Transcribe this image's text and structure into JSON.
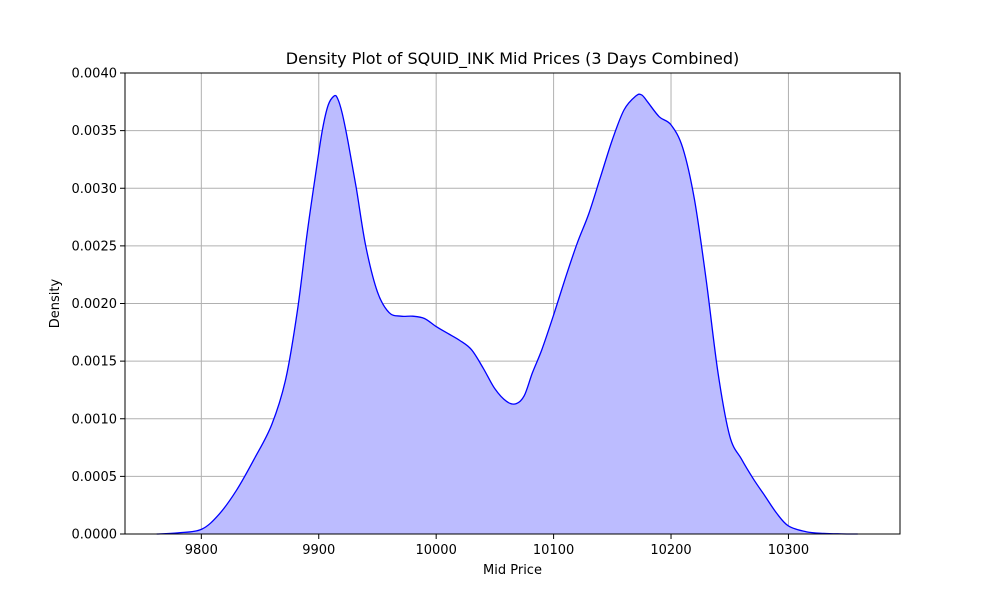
{
  "chart_data": {
    "type": "area",
    "title": "Density Plot of SQUID_INK Mid Prices (3 Days Combined)",
    "xlabel": "Mid Price",
    "ylabel": "Density",
    "xlim": [
      9735,
      10395
    ],
    "ylim": [
      0,
      0.004
    ],
    "xticks": [
      9800,
      9900,
      10000,
      10100,
      10200,
      10300
    ],
    "xtick_labels": [
      "9800",
      "9900",
      "10000",
      "10100",
      "10200",
      "10300"
    ],
    "yticks": [
      0,
      0.0005,
      0.001,
      0.0015,
      0.002,
      0.0025,
      0.003,
      0.0035,
      0.004
    ],
    "ytick_labels": [
      "0.0000",
      "0.0005",
      "0.0010",
      "0.0015",
      "0.0020",
      "0.0025",
      "0.0030",
      "0.0035",
      "0.0040"
    ],
    "grid": true,
    "line_color": "#0000ff",
    "fill_color": "#bcbcff",
    "series": [
      {
        "x": [
          9762,
          9780,
          9800,
          9815,
          9830,
          9845,
          9860,
          9872,
          9882,
          9890,
          9897,
          9903,
          9908,
          9913,
          9916,
          9920,
          9925,
          9932,
          9940,
          9950,
          9960,
          9970,
          9980,
          9990,
          10000,
          10010,
          10020,
          10030,
          10040,
          10050,
          10060,
          10068,
          10075,
          10082,
          10090,
          10100,
          10110,
          10120,
          10130,
          10140,
          10150,
          10160,
          10170,
          10175,
          10180,
          10190,
          10200,
          10210,
          10220,
          10230,
          10240,
          10250,
          10260,
          10270,
          10280,
          10290,
          10300,
          10315,
          10330,
          10345,
          10359
        ],
        "y": [
          0.0,
          1e-05,
          4e-05,
          0.00017,
          0.00038,
          0.00065,
          0.00095,
          0.00135,
          0.00195,
          0.0026,
          0.0031,
          0.0035,
          0.00372,
          0.0038,
          0.00378,
          0.00365,
          0.0034,
          0.003,
          0.0025,
          0.0021,
          0.00192,
          0.00189,
          0.00189,
          0.00187,
          0.0018,
          0.00174,
          0.00168,
          0.0016,
          0.00144,
          0.00126,
          0.00115,
          0.00113,
          0.0012,
          0.0014,
          0.0016,
          0.0019,
          0.00222,
          0.00252,
          0.00278,
          0.0031,
          0.00342,
          0.00368,
          0.0038,
          0.00381,
          0.00375,
          0.00362,
          0.00355,
          0.00335,
          0.0029,
          0.0022,
          0.0014,
          0.00085,
          0.00065,
          0.00048,
          0.00033,
          0.00018,
          7e-05,
          2e-05,
          5e-06,
          1e-06,
          0.0
        ]
      }
    ]
  }
}
